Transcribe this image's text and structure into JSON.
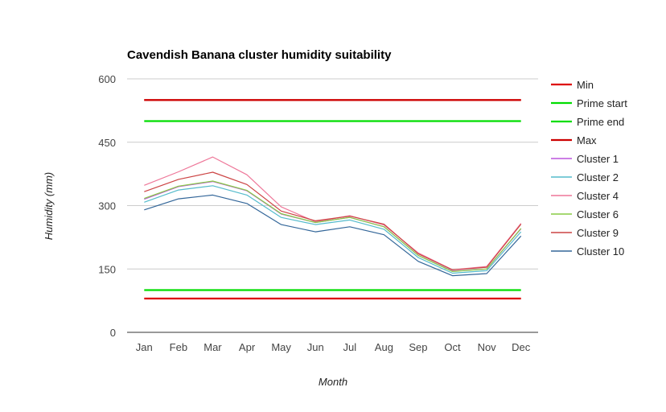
{
  "chart_data": {
    "type": "line",
    "title": "Cavendish Banana cluster humidity suitability",
    "xlabel": "Month",
    "ylabel": "Humidity (mm)",
    "ylim": [
      0,
      600
    ],
    "yticks": [
      0,
      150,
      300,
      450,
      600
    ],
    "grid": true,
    "legend_position": "right",
    "categories": [
      "Jan",
      "Feb",
      "Mar",
      "Apr",
      "May",
      "Jun",
      "Jul",
      "Aug",
      "Sep",
      "Oct",
      "Nov",
      "Dec"
    ],
    "series": [
      {
        "name": "Min",
        "color": "#dd0000",
        "width": 2.2,
        "values": [
          80,
          80,
          80,
          80,
          80,
          80,
          80,
          80,
          80,
          80,
          80,
          80
        ],
        "extra": [
          550,
          550,
          550,
          550,
          550,
          550,
          550,
          550,
          550,
          550,
          550,
          550
        ]
      },
      {
        "name": "Prime start",
        "color": "#00dd00",
        "width": 2.2,
        "values": [
          100,
          100,
          100,
          100,
          100,
          100,
          100,
          100,
          100,
          100,
          100,
          100
        ]
      },
      {
        "name": "Prime end",
        "color": "#00dd00",
        "width": 2.2,
        "values": [
          500,
          500,
          500,
          500,
          500,
          500,
          500,
          500,
          500,
          500,
          500,
          500
        ]
      },
      {
        "name": "Max",
        "color": "#cc0000",
        "width": 2.2,
        "values": [
          550,
          550,
          550,
          550,
          550,
          550,
          550,
          550,
          550,
          550,
          550,
          550
        ]
      },
      {
        "name": "Cluster 1",
        "color": "#bb55dd",
        "width": 1.2,
        "values": [
          315,
          345,
          357,
          335,
          280,
          260,
          272,
          250,
          182,
          145,
          150,
          245
        ]
      },
      {
        "name": "Cluster 2",
        "color": "#55bbcc",
        "width": 1.2,
        "values": [
          308,
          337,
          347,
          325,
          272,
          255,
          266,
          244,
          177,
          140,
          146,
          238
        ]
      },
      {
        "name": "Cluster 4",
        "color": "#ee7799",
        "width": 1.2,
        "values": [
          348,
          380,
          415,
          373,
          297,
          262,
          276,
          254,
          188,
          148,
          156,
          258
        ]
      },
      {
        "name": "Cluster 6",
        "color": "#88cc44",
        "width": 1.2,
        "values": [
          317,
          346,
          358,
          336,
          281,
          260,
          272,
          250,
          182,
          144,
          150,
          246
        ]
      },
      {
        "name": "Cluster 9",
        "color": "#cc4444",
        "width": 1.2,
        "values": [
          333,
          362,
          379,
          350,
          287,
          264,
          275,
          256,
          186,
          148,
          154,
          256
        ]
      },
      {
        "name": "Cluster 10",
        "color": "#336699",
        "width": 1.2,
        "values": [
          290,
          316,
          325,
          305,
          255,
          238,
          250,
          231,
          168,
          134,
          139,
          228
        ]
      }
    ]
  }
}
